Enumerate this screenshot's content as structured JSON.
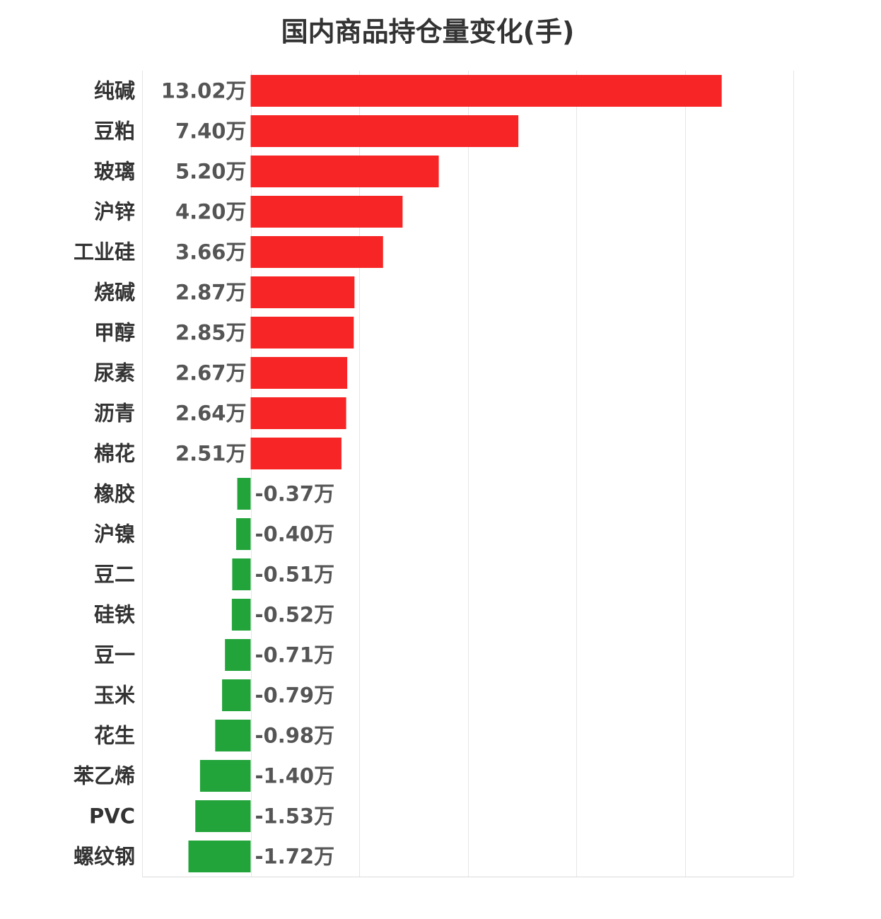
{
  "chart_data": {
    "type": "bar",
    "orientation": "horizontal",
    "title": "国内商品持仓量变化(手)",
    "unit_suffix": "万",
    "categories": [
      "纯碱",
      "豆粕",
      "玻璃",
      "沪锌",
      "工业硅",
      "烧碱",
      "甲醇",
      "尿素",
      "沥青",
      "棉花",
      "橡胶",
      "沪镍",
      "豆二",
      "硅铁",
      "豆一",
      "玉米",
      "花生",
      "苯乙烯",
      "PVC",
      "螺纹钢"
    ],
    "values": [
      13.02,
      7.4,
      5.2,
      4.2,
      3.66,
      2.87,
      2.85,
      2.67,
      2.64,
      2.51,
      -0.37,
      -0.4,
      -0.51,
      -0.52,
      -0.71,
      -0.79,
      -0.98,
      -1.4,
      -1.53,
      -1.72
    ],
    "value_labels": [
      "13.02万",
      "7.40万",
      "5.20万",
      "4.20万",
      "3.66万",
      "2.87万",
      "2.85万",
      "2.67万",
      "2.64万",
      "2.51万",
      "-0.37万",
      "-0.40万",
      "-0.51万",
      "-0.52万",
      "-0.71万",
      "-0.79万",
      "-0.98万",
      "-1.40万",
      "-1.53万",
      "-1.72万"
    ],
    "xlim": [
      -3,
      15
    ],
    "gridlines": [
      -3,
      0,
      3,
      6,
      9,
      12,
      15
    ],
    "grid": true,
    "legend": "none",
    "colors": {
      "positive": "#f72525",
      "negative": "#22a43a",
      "grid": "#e6e6e6",
      "axis": "#dcdcdc"
    }
  }
}
